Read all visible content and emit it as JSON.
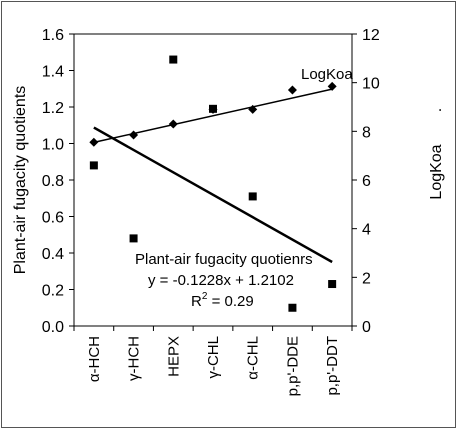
{
  "chart_data": {
    "type": "scatter",
    "categories": [
      "α-HCH",
      "γ-HCH",
      "HEPX",
      "γ-CHL",
      "α-CHL",
      "p,p'-DDE",
      "p,p'-DDT"
    ],
    "y_left": {
      "label": "Plant-air fugacity quotients",
      "lim": [
        0,
        1.6
      ],
      "ticks": [
        "0.0",
        "0.2",
        "0.4",
        "0.6",
        "0.8",
        "1.0",
        "1.2",
        "1.4",
        "1.6"
      ]
    },
    "y_right": {
      "label": "LogKoa",
      "extra_mark": ".",
      "lim": [
        0,
        12
      ],
      "ticks": [
        "0",
        "2",
        "4",
        "6",
        "8",
        "10",
        "12"
      ]
    },
    "series": [
      {
        "name": "Plant-air fugacity quotienrs",
        "axis": "left",
        "marker": "square",
        "values": [
          0.88,
          0.48,
          1.46,
          1.19,
          0.71,
          0.1,
          0.23
        ],
        "trendline": {
          "slope": -0.1228,
          "intercept": 1.2102
        }
      },
      {
        "name": "LogKoa",
        "axis": "right",
        "marker": "diamond",
        "values": [
          7.55,
          7.85,
          8.3,
          8.9,
          8.9,
          9.7,
          9.85
        ],
        "trendline": {
          "slope": 0.365,
          "intercept": 7.18
        }
      }
    ],
    "annotations": {
      "logkoa_label": "LogKoa",
      "fit_title": "Plant-air fugacity quotienrs",
      "fit_equation": "y = -0.1228x + 1.2102",
      "fit_r2_prefix": "R",
      "fit_r2_exp": "2",
      "fit_r2_value": " = 0.29"
    },
    "grid": false,
    "legend": "none",
    "colors": {
      "marks": "#000000",
      "axes": "#000000",
      "frame": "#555555"
    }
  }
}
